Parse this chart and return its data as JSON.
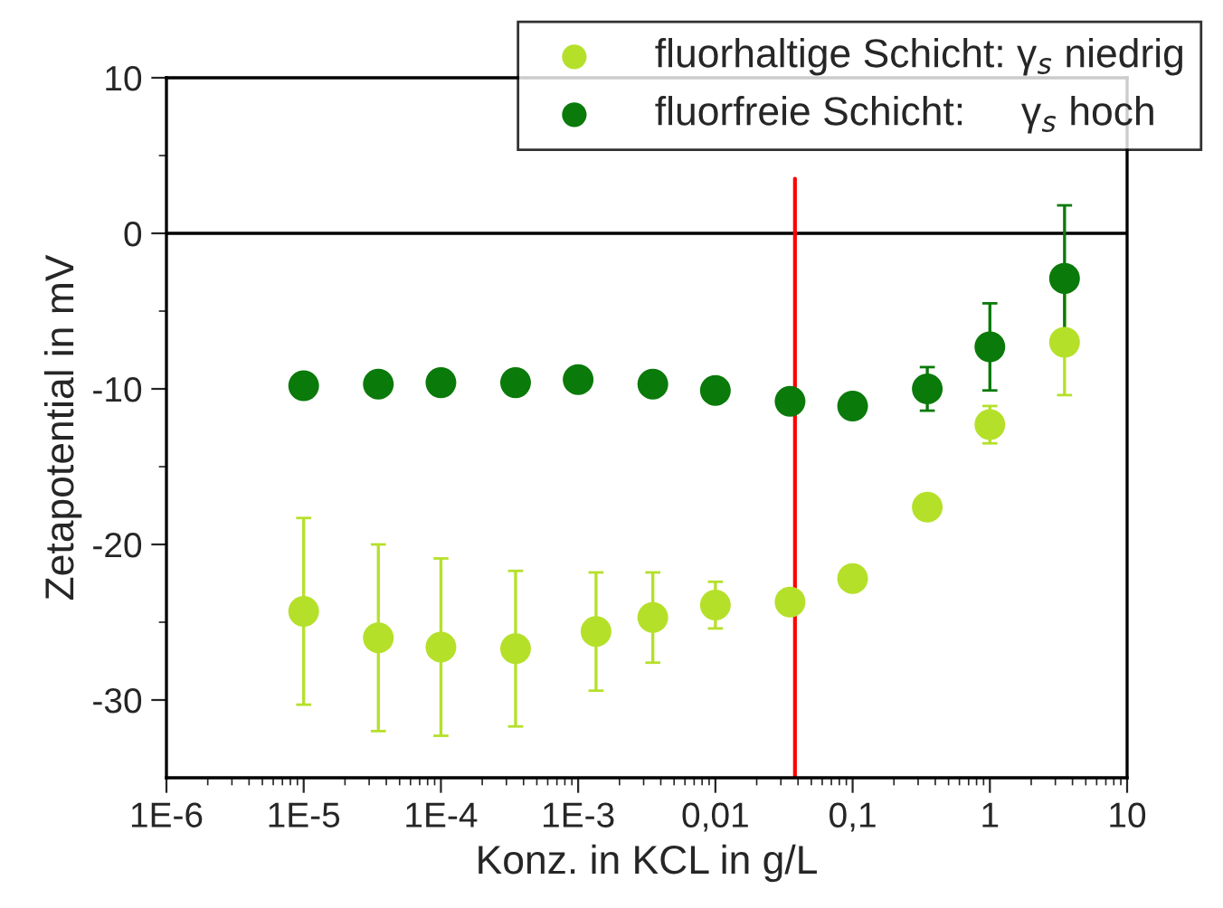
{
  "chart_data": {
    "type": "scatter",
    "xlabel": "Konz. in KCL in g/L",
    "ylabel": "Zetapotential in mV",
    "log": "x",
    "marker": "circle",
    "legend": "top right",
    "grid": false,
    "xlim": [
      1e-06,
      10
    ],
    "xticks": [
      {
        "value": 1e-06,
        "label": "1E-6"
      },
      {
        "value": 1e-05,
        "label": "1E-5"
      },
      {
        "value": 0.0001,
        "label": "1E-4"
      },
      {
        "value": 0.001,
        "label": "1E-3"
      },
      {
        "value": 0.01,
        "label": "0,01"
      },
      {
        "value": 0.1,
        "label": "0,1"
      },
      1,
      10
    ],
    "ylim": [
      -35,
      10
    ],
    "yticks": [
      -30,
      -20,
      -10,
      0,
      10
    ],
    "series": [
      {
        "name": "fluorhaltige Schicht: γ$_{s}$ niedrig",
        "color": "#b5e02a",
        "x": [
          1e-05,
          3.5e-05,
          0.0001,
          0.00035,
          0.00135,
          0.0035,
          0.01,
          0.035,
          0.1,
          0.35,
          1,
          3.5
        ],
        "values": [
          -24.3,
          -26.0,
          -26.6,
          -26.7,
          -25.6,
          -24.7,
          -23.9,
          -23.7,
          -22.2,
          -17.6,
          -12.3,
          -7.0
        ],
        "errors": [
          6,
          6,
          5.7,
          5,
          3.8,
          2.9,
          1.5,
          0.8,
          null,
          null,
          1.2,
          3.4
        ]
      },
      {
        "name": "fluorfreie Schicht:     γ$_{s}$ hoch",
        "color": "#0a7a0a",
        "x": [
          1e-05,
          3.5e-05,
          0.0001,
          0.00035,
          0.001,
          0.0035,
          0.01,
          0.035,
          0.1,
          0.35,
          1,
          3.5
        ],
        "values": [
          -9.8,
          -9.7,
          -9.6,
          -9.6,
          -9.4,
          -9.7,
          -10.1,
          -10.8,
          -11.1,
          -10.0,
          -7.3,
          -2.9
        ],
        "errors": [
          0.6,
          null,
          null,
          null,
          null,
          null,
          null,
          null,
          null,
          1.4,
          2.8,
          4.7
        ]
      }
    ],
    "ref_lines": [
      {
        "axis": "y",
        "value": 0,
        "color": "#000000"
      },
      {
        "axis": "x",
        "value": 0.038,
        "color": "#ff0000"
      }
    ]
  }
}
